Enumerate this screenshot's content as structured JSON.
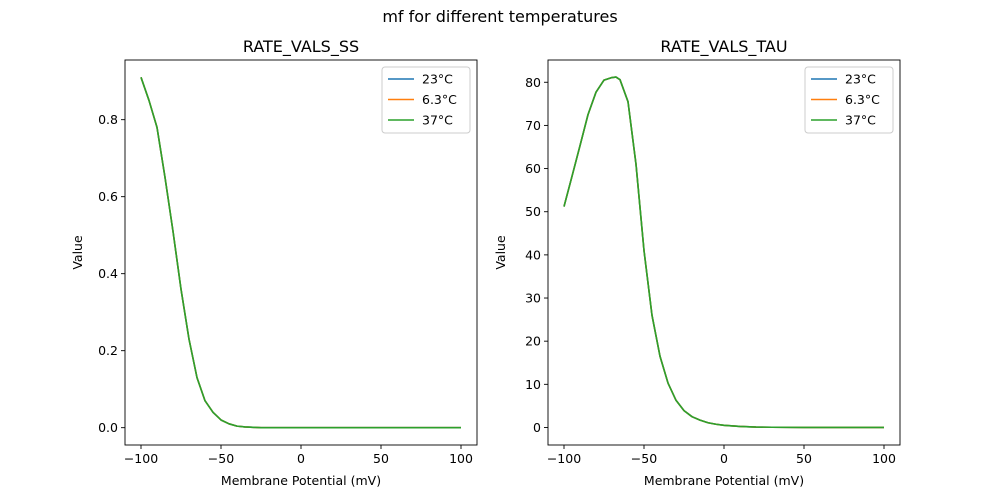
{
  "figure": {
    "suptitle": "mf for different temperatures"
  },
  "chart_data": [
    {
      "type": "line",
      "title": "RATE_VALS_SS",
      "xlabel": "Membrane Potential (mV)",
      "ylabel": "Value",
      "xlim": [
        -110,
        110
      ],
      "ylim": [
        -0.045,
        0.955
      ],
      "xticks": [
        -100,
        -50,
        0,
        50,
        100
      ],
      "xtick_labels": [
        "−100",
        "−50",
        "0",
        "50",
        "100"
      ],
      "yticks": [
        0.0,
        0.2,
        0.4,
        0.6,
        0.8
      ],
      "ytick_labels": [
        "0.0",
        "0.2",
        "0.4",
        "0.6",
        "0.8"
      ],
      "grid": false,
      "legend_position": "top-right",
      "x": [
        -100,
        -95,
        -90,
        -85,
        -80,
        -75,
        -70,
        -65,
        -60,
        -55,
        -50,
        -45,
        -40,
        -35,
        -30,
        -25,
        -20,
        -10,
        0,
        25,
        50,
        75,
        100
      ],
      "series": [
        {
          "name": "23°C",
          "color": "#1f77b4",
          "values": [
            0.91,
            0.85,
            0.78,
            0.65,
            0.51,
            0.36,
            0.23,
            0.13,
            0.07,
            0.04,
            0.02,
            0.01,
            0.004,
            0.002,
            0.001,
            0.0,
            0.0,
            0.0,
            0.0,
            0.0,
            0.0,
            0.0,
            0.0
          ]
        },
        {
          "name": "6.3°C",
          "color": "#ff7f0e",
          "values": [
            0.91,
            0.85,
            0.78,
            0.65,
            0.51,
            0.36,
            0.23,
            0.13,
            0.07,
            0.04,
            0.02,
            0.01,
            0.004,
            0.002,
            0.001,
            0.0,
            0.0,
            0.0,
            0.0,
            0.0,
            0.0,
            0.0,
            0.0
          ]
        },
        {
          "name": "37°C",
          "color": "#2ca02c",
          "values": [
            0.91,
            0.85,
            0.78,
            0.65,
            0.51,
            0.36,
            0.23,
            0.13,
            0.07,
            0.04,
            0.02,
            0.01,
            0.004,
            0.002,
            0.001,
            0.0,
            0.0,
            0.0,
            0.0,
            0.0,
            0.0,
            0.0,
            0.0
          ]
        }
      ]
    },
    {
      "type": "line",
      "title": "RATE_VALS_TAU",
      "xlabel": "Membrane Potential (mV)",
      "ylabel": "Value",
      "xlim": [
        -110,
        110
      ],
      "ylim": [
        -4.06,
        85.16
      ],
      "xticks": [
        -100,
        -50,
        0,
        50,
        100
      ],
      "xtick_labels": [
        "−100",
        "−50",
        "0",
        "50",
        "100"
      ],
      "yticks": [
        0,
        10,
        20,
        30,
        40,
        50,
        60,
        70,
        80
      ],
      "ytick_labels": [
        "0",
        "10",
        "20",
        "30",
        "40",
        "50",
        "60",
        "70",
        "80"
      ],
      "grid": false,
      "legend_position": "top-right",
      "x": [
        -100,
        -95,
        -90,
        -85,
        -80,
        -75,
        -70,
        -67.5,
        -65,
        -60,
        -55,
        -50,
        -45,
        -40,
        -35,
        -30,
        -25,
        -20,
        -15,
        -10,
        -5,
        0,
        10,
        20,
        30,
        50,
        75,
        100
      ],
      "series": [
        {
          "name": "23°C",
          "color": "#1f77b4",
          "values": [
            51.2,
            58.2,
            65.3,
            72.5,
            77.7,
            80.5,
            81.1,
            81.2,
            80.6,
            75.5,
            61.0,
            41.0,
            26.0,
            16.5,
            10.3,
            6.3,
            3.9,
            2.5,
            1.7,
            1.1,
            0.75,
            0.5,
            0.25,
            0.1,
            0.05,
            0.0,
            0.0,
            0.0
          ]
        },
        {
          "name": "6.3°C",
          "color": "#ff7f0e",
          "values": [
            51.2,
            58.2,
            65.3,
            72.5,
            77.7,
            80.5,
            81.1,
            81.2,
            80.6,
            75.5,
            61.0,
            41.0,
            26.0,
            16.5,
            10.3,
            6.3,
            3.9,
            2.5,
            1.7,
            1.1,
            0.75,
            0.5,
            0.25,
            0.1,
            0.05,
            0.0,
            0.0,
            0.0
          ]
        },
        {
          "name": "37°C",
          "color": "#2ca02c",
          "values": [
            51.2,
            58.2,
            65.3,
            72.5,
            77.7,
            80.5,
            81.1,
            81.2,
            80.6,
            75.5,
            61.0,
            41.0,
            26.0,
            16.5,
            10.3,
            6.3,
            3.9,
            2.5,
            1.7,
            1.1,
            0.75,
            0.5,
            0.25,
            0.1,
            0.05,
            0.0,
            0.0,
            0.0
          ]
        }
      ]
    }
  ]
}
